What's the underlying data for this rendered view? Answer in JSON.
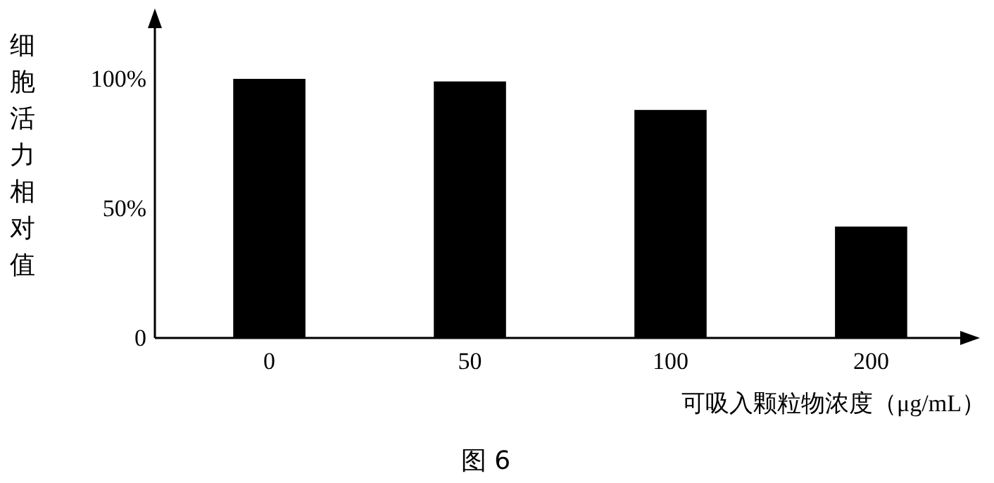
{
  "chart_data": {
    "type": "bar",
    "title": "图 6",
    "xlabel": "可吸入颗粒物浓度（μg/mL）",
    "ylabel": "细胞活力相对值",
    "categories": [
      "0",
      "50",
      "100",
      "200"
    ],
    "values": [
      100,
      99,
      88,
      43
    ],
    "color": "#000000",
    "ylim": [
      0,
      125
    ],
    "yticks": [
      0,
      {
        "value": 50,
        "label": "50%"
      },
      {
        "value": 100,
        "label": "100%"
      }
    ],
    "grid": false
  }
}
